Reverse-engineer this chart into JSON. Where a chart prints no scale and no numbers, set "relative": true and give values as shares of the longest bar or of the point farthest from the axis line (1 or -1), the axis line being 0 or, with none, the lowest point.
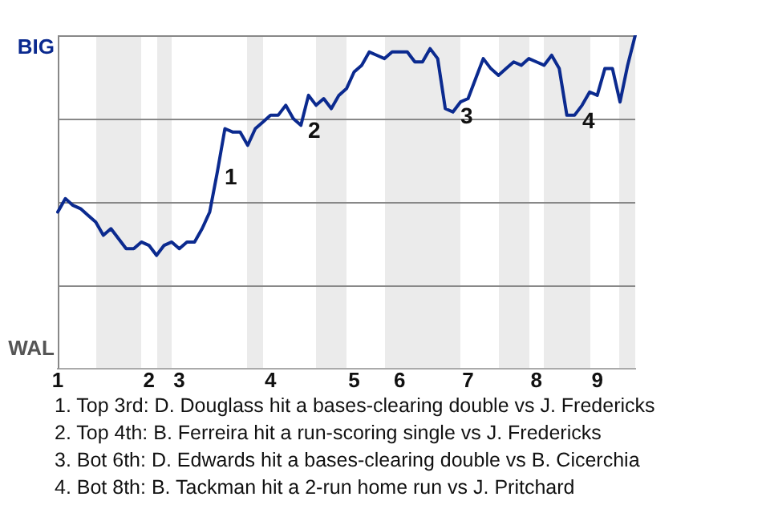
{
  "chart_data": {
    "type": "line",
    "relative": true,
    "categories": [
      "1",
      null,
      null,
      null,
      null,
      null,
      null,
      null,
      null,
      null,
      null,
      null,
      "2",
      null,
      null,
      null,
      "3",
      null,
      null,
      null,
      null,
      null,
      null,
      null,
      null,
      null,
      null,
      null,
      "4",
      null,
      null,
      null,
      null,
      null,
      null,
      null,
      null,
      null,
      null,
      "5",
      null,
      null,
      null,
      null,
      null,
      "6",
      null,
      null,
      null,
      null,
      null,
      null,
      null,
      null,
      "7",
      null,
      null,
      null,
      null,
      null,
      null,
      null,
      null,
      "8",
      null,
      null,
      null,
      null,
      null,
      null,
      null,
      "9",
      null,
      null,
      null,
      null,
      null
    ],
    "values": [
      0.47,
      0.51,
      0.49,
      0.48,
      0.46,
      0.44,
      0.4,
      0.42,
      0.39,
      0.36,
      0.36,
      0.38,
      0.37,
      0.34,
      0.37,
      0.38,
      0.36,
      0.38,
      0.38,
      0.42,
      0.47,
      0.59,
      0.72,
      0.71,
      0.71,
      0.67,
      0.72,
      0.74,
      0.76,
      0.76,
      0.79,
      0.75,
      0.73,
      0.82,
      0.79,
      0.81,
      0.78,
      0.82,
      0.84,
      0.89,
      0.91,
      0.95,
      0.94,
      0.93,
      0.95,
      0.95,
      0.95,
      0.92,
      0.92,
      0.96,
      0.93,
      0.78,
      0.77,
      0.8,
      0.81,
      0.87,
      0.93,
      0.9,
      0.88,
      0.9,
      0.92,
      0.91,
      0.93,
      0.92,
      0.91,
      0.94,
      0.9,
      0.76,
      0.76,
      0.79,
      0.83,
      0.82,
      0.9,
      0.9,
      0.8,
      0.91,
      1
    ],
    "color": "#0b2a8f",
    "grid": "y",
    "legend": false,
    "marker": "none",
    "line_style": "solid",
    "annotations": [
      "BIG",
      "WAL",
      "1",
      "2",
      "3",
      "4",
      "1. Top 3rd: D. Douglass hit a bases-clearing double vs J. Fredericks",
      "2. Top 4th: B. Ferreira hit a run-scoring single vs J. Fredericks",
      "3. Bot 6th: D. Edwards hit a bases-clearing double vs B. Cicerchia",
      "4. Bot 8th: B. Tackman hit a 2-run home run vs J. Pritchard"
    ]
  }
}
